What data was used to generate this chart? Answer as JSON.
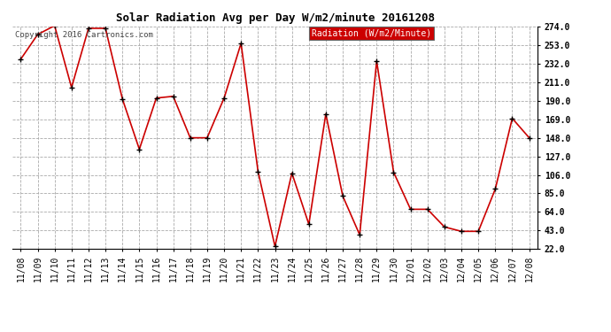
{
  "title": "Solar Radiation Avg per Day W/m2/minute 20161208",
  "copyright_text": "Copyright 2016 Cartronics.com",
  "legend_label": "Radiation (W/m2/Minute)",
  "dates": [
    "11/08",
    "11/09",
    "11/10",
    "11/11",
    "11/12",
    "11/13",
    "11/14",
    "11/15",
    "11/16",
    "11/17",
    "11/18",
    "11/19",
    "11/20",
    "11/21",
    "11/22",
    "11/23",
    "11/24",
    "11/25",
    "11/26",
    "11/27",
    "11/28",
    "11/29",
    "11/30",
    "12/01",
    "12/02",
    "12/03",
    "12/04",
    "12/05",
    "12/06",
    "12/07",
    "12/08"
  ],
  "values": [
    237,
    265,
    275,
    205,
    272,
    272,
    192,
    135,
    193,
    195,
    148,
    148,
    193,
    255,
    110,
    25,
    108,
    50,
    175,
    82,
    38,
    235,
    109,
    67,
    67,
    47,
    42,
    42,
    90,
    170,
    148
  ],
  "ylim": [
    22.0,
    274.0
  ],
  "yticks": [
    22.0,
    43.0,
    64.0,
    85.0,
    106.0,
    127.0,
    148.0,
    169.0,
    190.0,
    211.0,
    232.0,
    253.0,
    274.0
  ],
  "line_color": "#cc0000",
  "marker_color": "#000000",
  "bg_color": "#ffffff",
  "grid_color": "#aaaaaa",
  "title_fontsize": 9,
  "copyright_fontsize": 6.5,
  "legend_fontsize": 7,
  "tick_fontsize": 7,
  "legend_bg": "#cc0000",
  "legend_text_color": "#ffffff",
  "fig_width": 6.9,
  "fig_height": 3.75,
  "dpi": 100
}
